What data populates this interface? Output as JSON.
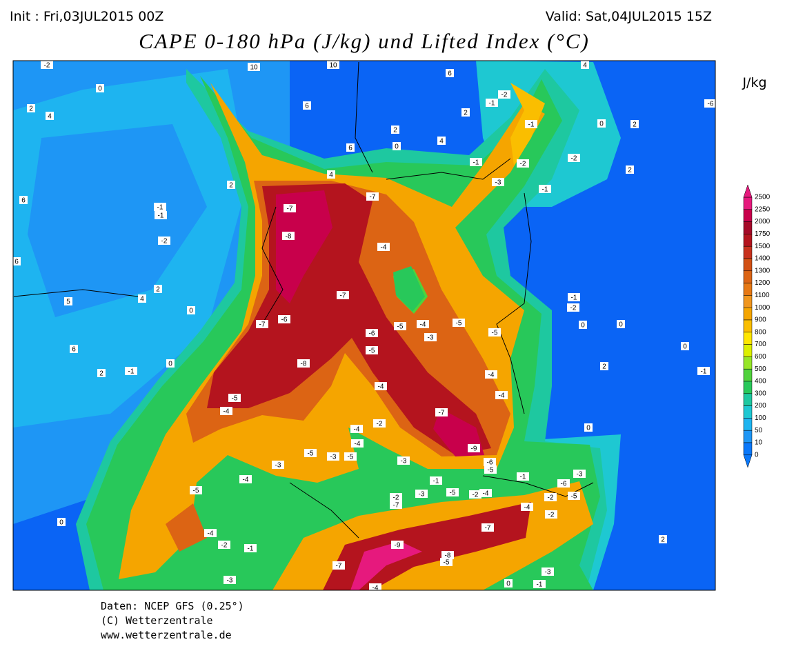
{
  "header": {
    "init": "Init : Fri,03JUL2015 00Z",
    "valid": "Valid: Sat,04JUL2015 15Z",
    "title": "CAPE 0-180 hPa (J/kg) und Lifted Index (°C)"
  },
  "legend": {
    "unit": "J/kg",
    "levels": [
      2500,
      2250,
      2000,
      1750,
      1500,
      1400,
      1300,
      1200,
      1100,
      1000,
      900,
      800,
      700,
      600,
      500,
      400,
      300,
      200,
      100,
      50,
      10,
      0
    ],
    "colors": [
      "#e6197d",
      "#c8004b",
      "#a50a28",
      "#b4141e",
      "#c8321e",
      "#d25014",
      "#dc6414",
      "#e67814",
      "#f0961e",
      "#f5a500",
      "#fabe00",
      "#ffe600",
      "#dcf000",
      "#96e628",
      "#50d23c",
      "#28c85a",
      "#1ec8a0",
      "#1ec8d2",
      "#1eb4f0",
      "#1e96f5",
      "#0a78fa"
    ]
  },
  "map_labels": [
    "-2",
    "10",
    "10",
    "6",
    "4",
    "0",
    "2",
    "4",
    "6",
    "2",
    "2",
    "4",
    "0",
    "6",
    "-2",
    "-1",
    "-1",
    "-2",
    "-1",
    "-2",
    "-3",
    "-1",
    "2",
    "0",
    "2",
    "-6",
    "4",
    "2",
    "-1",
    "-2",
    "-7",
    "-7",
    "-8",
    "-4",
    "-7",
    "-6",
    "-7",
    "-5",
    "-4",
    "-5",
    "-3",
    "-5",
    "-6",
    "-5",
    "-8",
    "-4",
    "-4",
    "-4",
    "-5",
    "-4",
    "-7",
    "-9",
    "-6",
    "-5",
    "-3",
    "-4",
    "-4",
    "-2",
    "-5",
    "-3",
    "-5",
    "-3",
    "-4",
    "-5",
    "-1",
    "-3",
    "-5",
    "-2",
    "-4",
    "-7",
    "-2",
    "-4",
    "-2",
    "-6",
    "-3",
    "-5",
    "-2",
    "-1",
    "-7",
    "-9",
    "-8",
    "-5",
    "-7",
    "-4",
    "-3",
    "-2",
    "-1",
    "-4",
    "0",
    "2",
    "-3",
    "-1",
    "0",
    "0",
    "2",
    "-1",
    "0",
    "0",
    "0",
    "-2",
    "-1",
    "-1",
    "2",
    "0",
    "6",
    "5",
    "4",
    "2",
    "0",
    "6",
    "6",
    "-1"
  ],
  "footer": [
    "Daten: NCEP GFS (0.25°)",
    "(C) Wetterzentrale",
    "www.wetterzentrale.de"
  ]
}
